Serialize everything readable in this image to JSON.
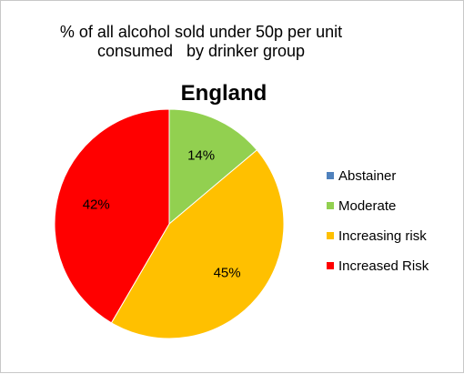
{
  "chart_data": {
    "type": "pie",
    "title_lines": [
      "% of all alcohol sold under 50p per unit",
      "consumed   by drinker group"
    ],
    "subtitle": "England",
    "categories": [
      "Abstainer",
      "Moderate",
      "Increasing risk",
      "Increased Risk"
    ],
    "values": [
      0,
      14,
      45,
      42
    ],
    "data_labels": [
      "",
      "14%",
      "45%",
      "42%"
    ],
    "colors": [
      "#4f81bd",
      "#92d050",
      "#ffc000",
      "#ff0000"
    ],
    "legend_position": "right"
  }
}
